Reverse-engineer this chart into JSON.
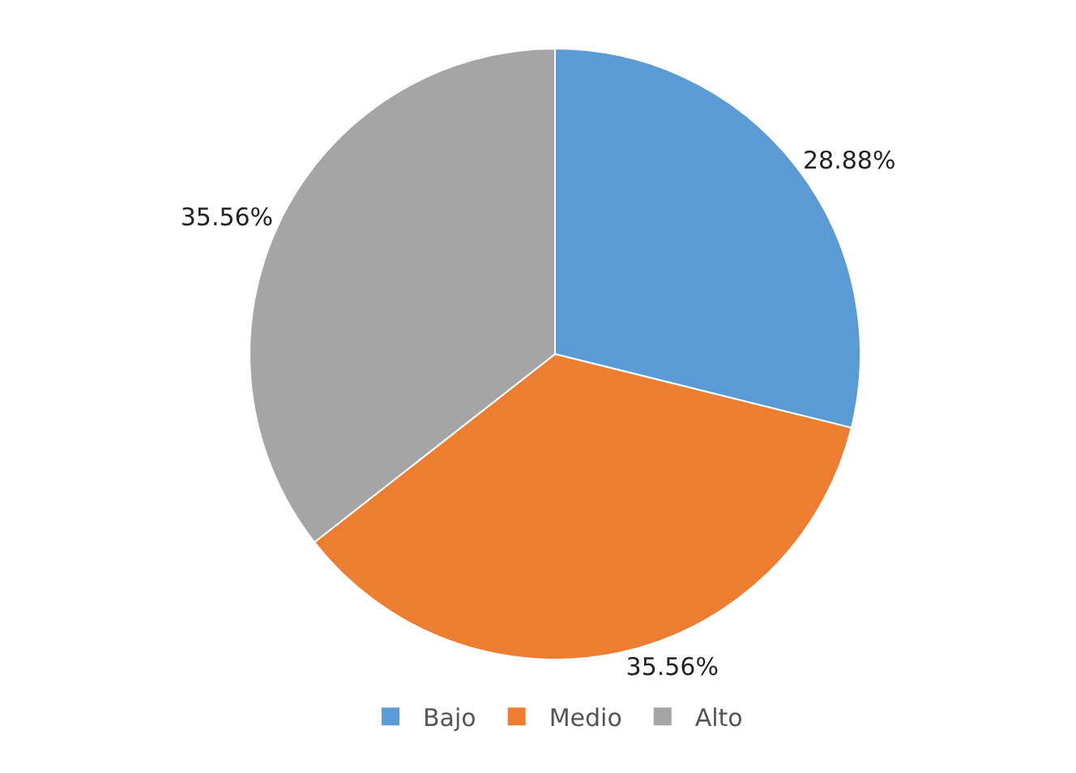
{
  "chart_data": {
    "type": "pie",
    "categories": [
      "Bajo",
      "Medio",
      "Alto"
    ],
    "values": [
      28.88,
      35.56,
      35.56
    ],
    "value_labels": [
      "28.88%",
      "35.56%",
      "35.56%"
    ],
    "colors": [
      "#5b9bd5",
      "#ed7d31",
      "#a5a5a5"
    ],
    "legend": "bottom"
  }
}
